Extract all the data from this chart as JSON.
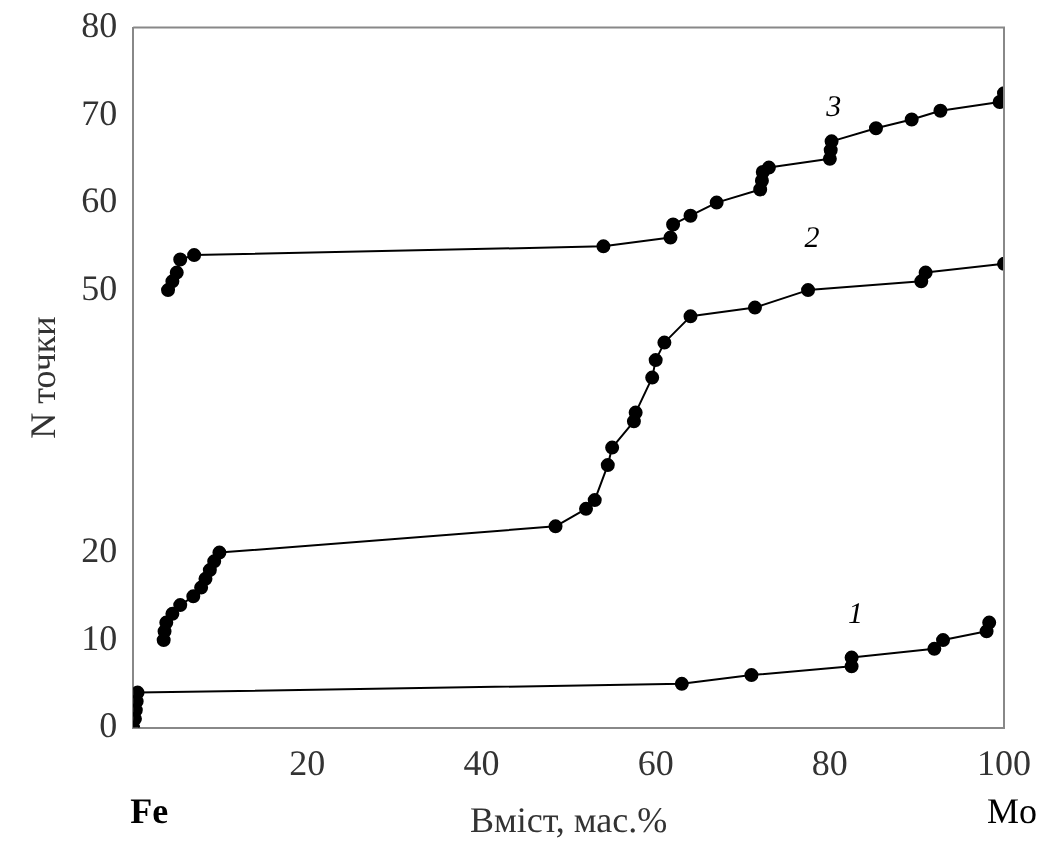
{
  "chart_data": {
    "type": "line",
    "xlabel": "Вміст, мас.%",
    "ylabel": "N точки",
    "annotations": [
      "Fe",
      "Mo"
    ],
    "xlim": [
      0,
      100
    ],
    "xticks": [
      20,
      40,
      60,
      80,
      100
    ],
    "ylim": [
      0,
      80
    ],
    "yticks": [
      0,
      10,
      20,
      50,
      60,
      70,
      80
    ],
    "grid": false,
    "legend": false,
    "marker": "circle",
    "line_style": "solid",
    "series": [
      {
        "name": "1",
        "color": "#000000",
        "x": [
          0,
          0.2,
          0.3,
          0.4,
          0.5,
          63,
          71,
          82.5,
          82.5,
          92,
          93,
          98,
          98.3
        ],
        "values": [
          0,
          1,
          2,
          3,
          4,
          5,
          6,
          7,
          8,
          9,
          10,
          11,
          12
        ]
      },
      {
        "name": "2",
        "color": "#000000",
        "x": [
          3.5,
          3.6,
          3.8,
          4.5,
          5.4,
          6.9,
          7.8,
          8.3,
          8.8,
          9.3,
          9.9,
          48.5,
          52,
          53,
          54.5,
          55,
          57.5,
          57.7,
          59.6,
          60,
          61,
          64,
          71.4,
          77.5,
          90.5,
          91,
          100
        ],
        "values": [
          10,
          11,
          12,
          13,
          14,
          15,
          16,
          17,
          18,
          19,
          20,
          23,
          25,
          26,
          30,
          32,
          35,
          36,
          40,
          42,
          44,
          47,
          48,
          50,
          51,
          52,
          53
        ]
      },
      {
        "name": "3",
        "color": "#000000",
        "x": [
          4,
          4.5,
          5,
          5.4,
          7,
          54,
          61.7,
          62,
          64,
          67,
          72,
          72.2,
          72.3,
          73,
          80,
          80.1,
          80.2,
          85.3,
          89.4,
          92.7,
          99.5,
          100
        ],
        "values": [
          50,
          51,
          52,
          53.5,
          54,
          55,
          56,
          57.5,
          58.5,
          60,
          61.5,
          62.5,
          63.5,
          64,
          65,
          66,
          67,
          68.5,
          69.5,
          70.5,
          71.5,
          72.5
        ]
      }
    ]
  }
}
